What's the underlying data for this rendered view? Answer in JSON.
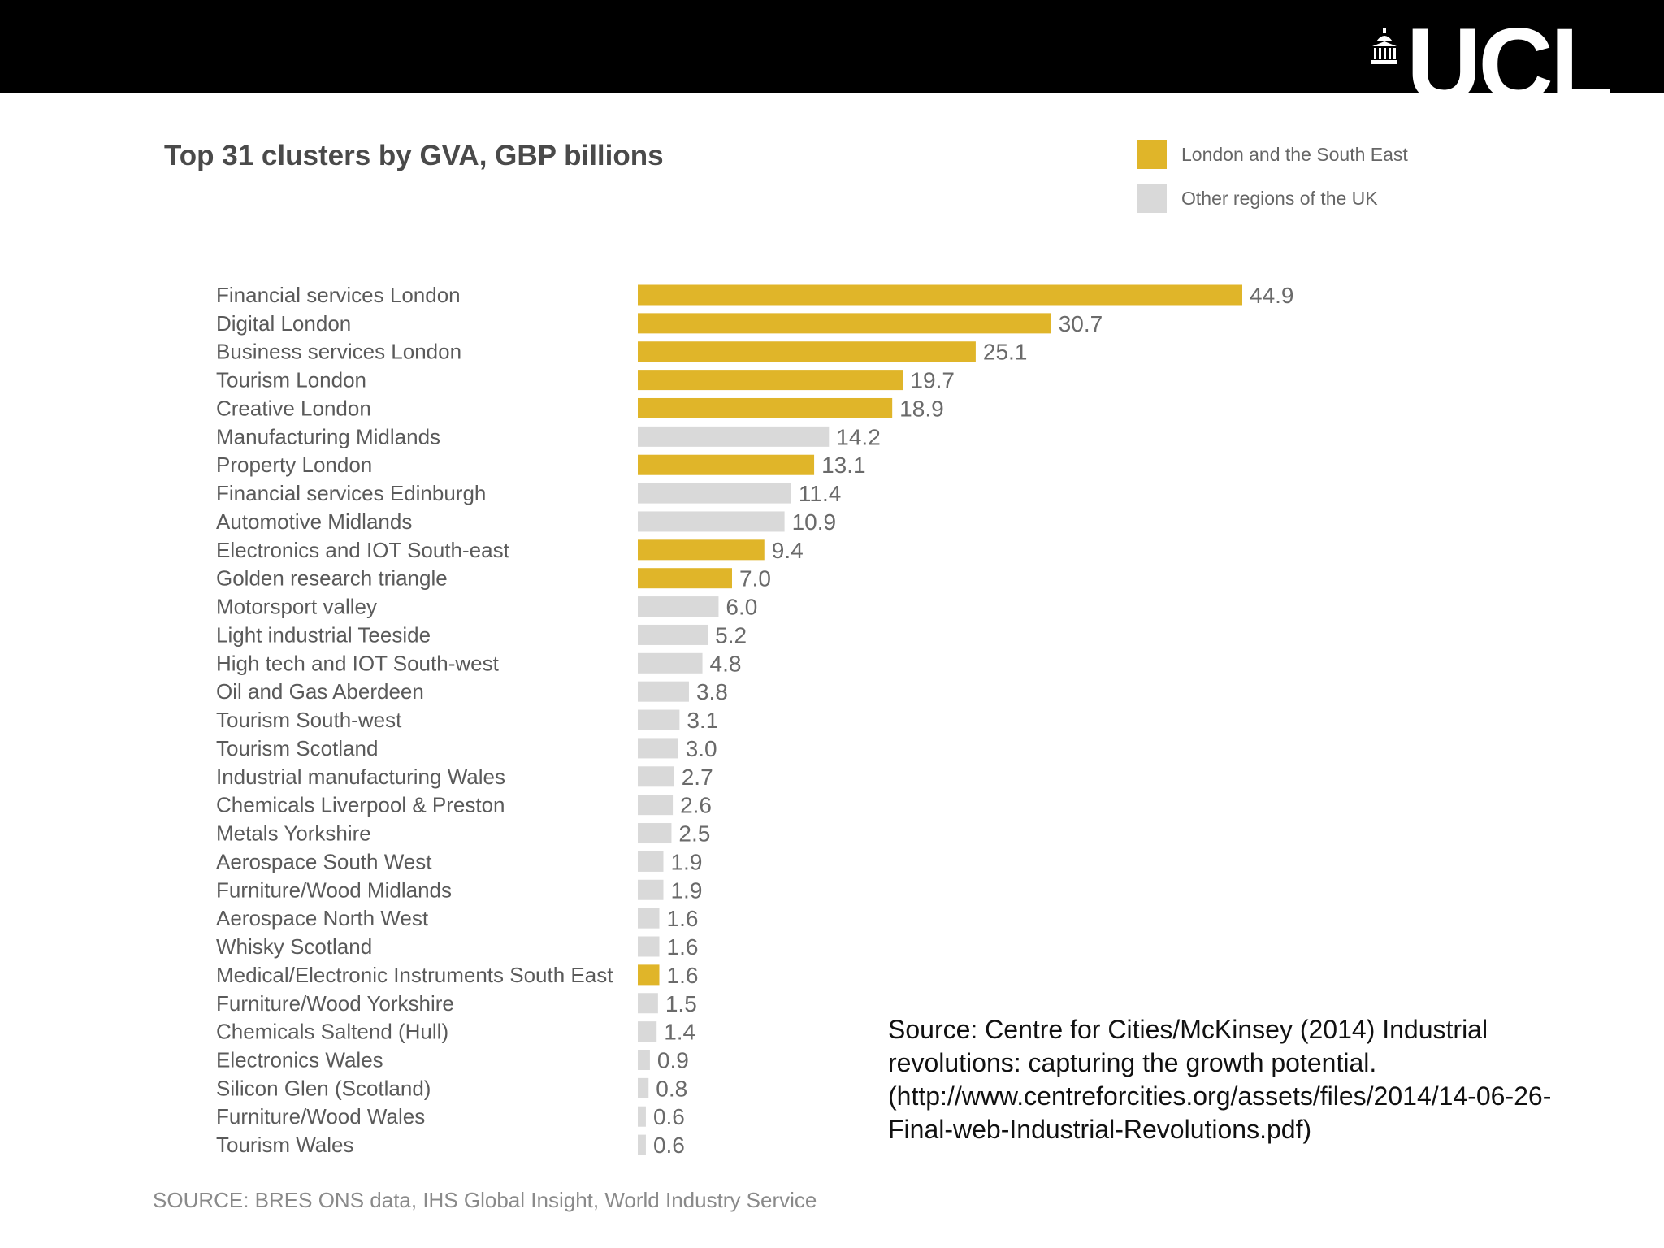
{
  "branding": {
    "logo_text": "UCL",
    "logo_icon": "portico-icon"
  },
  "colors": {
    "london": "#e0b529",
    "other": "#d9d9d9",
    "header_bg": "#000000"
  },
  "chart_data": {
    "type": "bar",
    "orientation": "horizontal",
    "title": "Top 31 clusters by GVA, GBP billions",
    "xlabel": "",
    "ylabel": "",
    "xlim": [
      0,
      44.9
    ],
    "grid": false,
    "legend_position": "top-right",
    "legend": [
      {
        "key": "london",
        "label": "London and the South East"
      },
      {
        "key": "other",
        "label": "Other regions of the UK"
      }
    ],
    "categories": [
      "Financial services London",
      "Digital London",
      "Business services London",
      "Tourism London",
      "Creative London",
      "Manufacturing Midlands",
      "Property London",
      "Financial services Edinburgh",
      "Automotive Midlands",
      "Electronics and IOT South-east",
      "Golden research triangle",
      "Motorsport valley",
      "Light industrial Teeside",
      "High tech and IOT South-west",
      "Oil and Gas Aberdeen",
      "Tourism South-west",
      "Tourism Scotland",
      "Industrial manufacturing Wales",
      "Chemicals Liverpool & Preston",
      "Metals Yorkshire",
      "Aerospace South West",
      "Furniture/Wood Midlands",
      "Aerospace North West",
      "Whisky Scotland",
      "Medical/Electronic Instruments South East",
      "Furniture/Wood Yorkshire",
      "Chemicals Saltend (Hull)",
      "Electronics Wales",
      "Silicon Glen (Scotland)",
      "Furniture/Wood Wales",
      "Tourism Wales"
    ],
    "values": [
      44.9,
      30.7,
      25.1,
      19.7,
      18.9,
      14.2,
      13.1,
      11.4,
      10.9,
      9.4,
      7.0,
      6.0,
      5.2,
      4.8,
      3.8,
      3.1,
      3.0,
      2.7,
      2.6,
      2.5,
      1.9,
      1.9,
      1.6,
      1.6,
      1.6,
      1.5,
      1.4,
      0.9,
      0.8,
      0.6,
      0.6
    ],
    "value_labels": [
      "44.9",
      "30.7",
      "25.1",
      "19.7",
      "18.9",
      "14.2",
      "13.1",
      "11.4",
      "10.9",
      "9.4",
      "7.0",
      "6.0",
      "5.2",
      "4.8",
      "3.8",
      "3.1",
      "3.0",
      "2.7",
      "2.6",
      "2.5",
      "1.9",
      "1.9",
      "1.6",
      "1.6",
      "1.6",
      "1.5",
      "1.4",
      "0.9",
      "0.8",
      "0.6",
      "0.6"
    ],
    "groups": [
      "london",
      "london",
      "london",
      "london",
      "london",
      "other",
      "london",
      "other",
      "other",
      "london",
      "london",
      "other",
      "other",
      "other",
      "other",
      "other",
      "other",
      "other",
      "other",
      "other",
      "other",
      "other",
      "other",
      "other",
      "london",
      "other",
      "other",
      "other",
      "other",
      "other",
      "other"
    ],
    "footnote": "SOURCE: BRES ONS data, IHS Global Insight, World Industry Service"
  },
  "source_note": "Source: Centre for Cities/McKinsey (2014) Industrial revolutions: capturing the growth potential. (http://www.centreforcities.org/assets/files/2014/14-06-26-Final-web-Industrial-Revolutions.pdf)"
}
